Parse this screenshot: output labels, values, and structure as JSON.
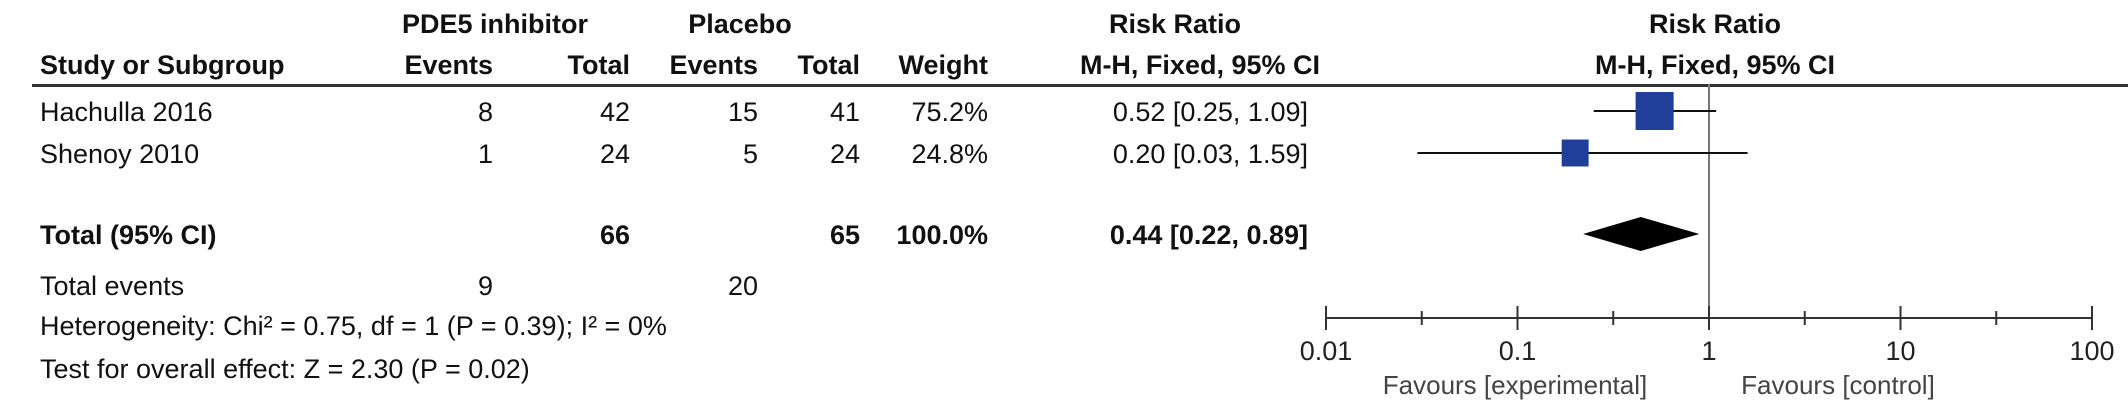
{
  "header": {
    "group_experimental": "PDE5 inhibitor",
    "group_control": "Placebo",
    "effect_measure": "Risk Ratio",
    "plot_title": "Risk Ratio",
    "col_study": "Study or Subgroup",
    "col_events_exp": "Events",
    "col_total_exp": "Total",
    "col_events_ctrl": "Events",
    "col_total_ctrl": "Total",
    "col_weight": "Weight",
    "col_method": "M-H, Fixed, 95% CI",
    "plot_method": "M-H, Fixed, 95% CI"
  },
  "studies": [
    {
      "name": "Hachulla 2016",
      "events_exp": "8",
      "total_exp": "42",
      "events_ctrl": "15",
      "total_ctrl": "41",
      "weight": "75.2%",
      "ci_text": "0.52 [0.25, 1.09]"
    },
    {
      "name": "Shenoy 2010",
      "events_exp": "1",
      "total_exp": "24",
      "events_ctrl": "5",
      "total_ctrl": "24",
      "weight": "24.8%",
      "ci_text": "0.20 [0.03, 1.59]"
    }
  ],
  "total": {
    "label": "Total (95% CI)",
    "total_exp": "66",
    "total_ctrl": "65",
    "weight": "100.0%",
    "ci_text": "0.44 [0.22, 0.89]"
  },
  "total_events": {
    "label": "Total events",
    "events_exp": "9",
    "events_ctrl": "20"
  },
  "heterogeneity": "Heterogeneity: Chi² = 0.75, df = 1 (P = 0.39); I² = 0%",
  "overall_effect": "Test for overall effect: Z = 2.30 (P = 0.02)",
  "axis": {
    "tick_labels": [
      "0.01",
      "0.1",
      "1",
      "10",
      "100"
    ],
    "favours_left": "Favours [experimental]",
    "favours_right": "Favours [control]"
  },
  "chart_data": {
    "type": "forest",
    "scale": "log",
    "xlim": [
      0.01,
      100
    ],
    "ticks": [
      0.01,
      0.1,
      1,
      10,
      100
    ],
    "null_line": 1,
    "studies": [
      {
        "name": "Hachulla 2016",
        "rr": 0.52,
        "lower": 0.25,
        "upper": 1.09,
        "weight": 75.2
      },
      {
        "name": "Shenoy 2010",
        "rr": 0.2,
        "lower": 0.03,
        "upper": 1.59,
        "weight": 24.8
      }
    ],
    "pooled": {
      "rr": 0.44,
      "lower": 0.22,
      "upper": 0.89
    },
    "colors": {
      "marker": "#1f3f9a",
      "pooled": "#000000",
      "axis": "#333333",
      "null_line": "#777777"
    }
  }
}
